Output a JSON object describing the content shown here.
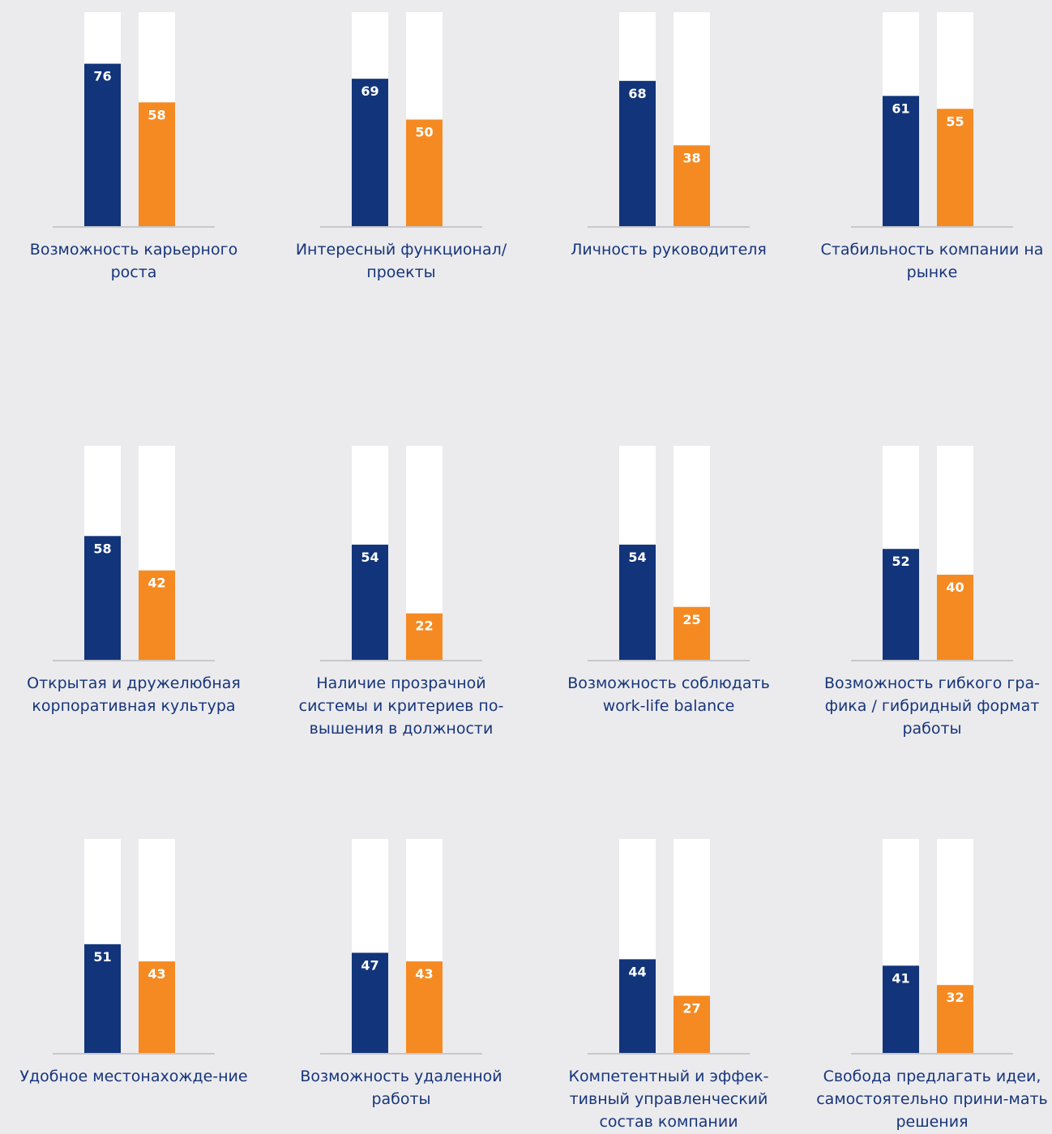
{
  "colors": {
    "background": "#ebebee",
    "track": "#ffffff",
    "series_a": "#12347a",
    "series_b": "#f58a22",
    "baseline": "#c8c8cc",
    "label": "#17357a"
  },
  "chart_data": {
    "type": "bar",
    "ylim": [
      0,
      100
    ],
    "grid": false,
    "legend": "none",
    "series_count": 2,
    "panels": [
      {
        "label": "Возможность карьерного роста",
        "values": [
          76,
          58
        ]
      },
      {
        "label": "Интересный функционал/ проекты",
        "values": [
          69,
          50
        ]
      },
      {
        "label": "Личность руководителя",
        "values": [
          68,
          38
        ]
      },
      {
        "label": "Стабильность компании на рынке",
        "values": [
          61,
          55
        ]
      },
      {
        "label": "Открытая и дружелюбная корпоративная культура",
        "values": [
          58,
          42
        ]
      },
      {
        "label": "Наличие прозрачной системы и критериев по-вышения в должности",
        "values": [
          54,
          22
        ]
      },
      {
        "label": "Возможность соблюдать work-life balance",
        "values": [
          54,
          25
        ]
      },
      {
        "label": "Возможность гибкого гра-фика / гибридный формат работы",
        "values": [
          52,
          40
        ]
      },
      {
        "label": "Удобное местонахожде-ние",
        "values": [
          51,
          43
        ]
      },
      {
        "label": "Возможность удаленной работы",
        "values": [
          47,
          43
        ]
      },
      {
        "label": "Компетентный и эффек-тивный управленческий состав компании",
        "values": [
          44,
          27
        ]
      },
      {
        "label": "Свобода предлагать идеи, самостоятельно прини-мать решения",
        "values": [
          41,
          32
        ]
      }
    ]
  }
}
